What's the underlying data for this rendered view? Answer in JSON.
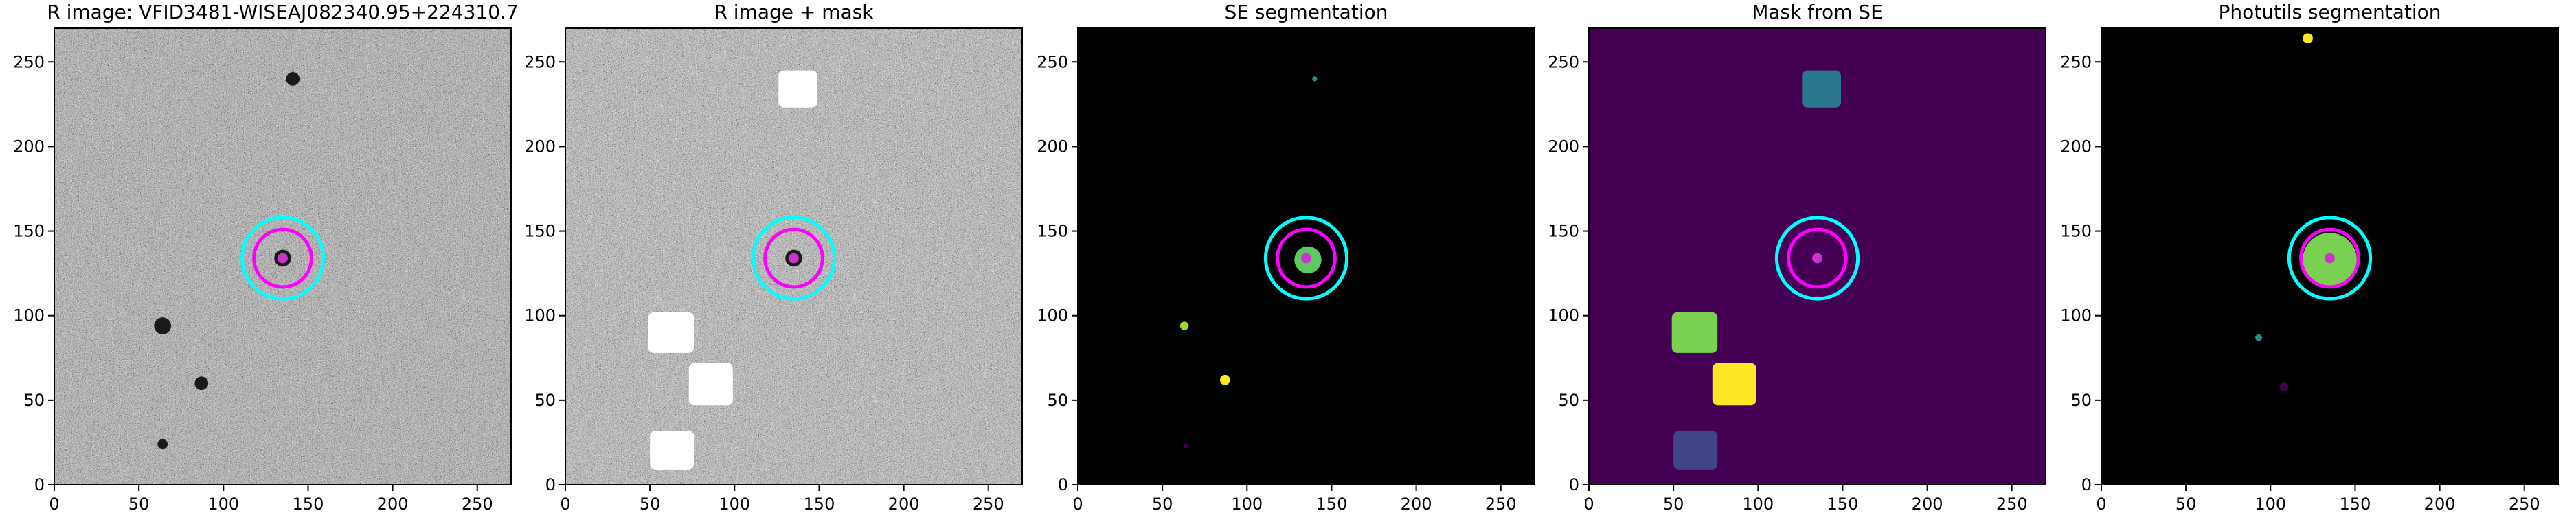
{
  "chart_data": [
    {
      "type": "image",
      "title": "R image: VFID3481-WISEAJ082340.95+224310.7",
      "cmap": "gray",
      "background": "#5c5c5c",
      "xlim": [
        0,
        270
      ],
      "ylim": [
        0,
        270
      ],
      "xticks": [
        0,
        50,
        100,
        150,
        200,
        250
      ],
      "yticks": [
        0,
        50,
        100,
        150,
        200,
        250
      ],
      "rects": [],
      "blobs": [
        {
          "x": 135,
          "y": 134,
          "r": 5,
          "color": "#1a1a1a"
        },
        {
          "x": 64,
          "y": 94,
          "r": 5,
          "color": "#1a1a1a"
        },
        {
          "x": 87,
          "y": 60,
          "r": 4,
          "color": "#1a1a1a"
        },
        {
          "x": 64,
          "y": 24,
          "r": 3,
          "color": "#1a1a1a"
        },
        {
          "x": 141,
          "y": 240,
          "r": 4,
          "color": "#1a1a1a"
        },
        {
          "x": 135,
          "y": 134,
          "r": 3,
          "color": "#cc33cc"
        }
      ],
      "circles": [
        {
          "x": 135,
          "y": 134,
          "r": 24,
          "color": "#00ffff"
        },
        {
          "x": 135,
          "y": 134,
          "r": 17,
          "color": "#ff00ff"
        }
      ]
    },
    {
      "type": "image",
      "title": "R image + mask",
      "cmap": "gray",
      "background": "#8a8a8a",
      "xlim": [
        0,
        270
      ],
      "ylim": [
        0,
        270
      ],
      "xticks": [
        0,
        50,
        100,
        150,
        200,
        250
      ],
      "yticks": [
        0,
        50,
        100,
        150,
        200,
        250
      ],
      "rects": [
        {
          "x0": 126,
          "y0": 223,
          "x1": 149,
          "y1": 245,
          "color": "#ffffff"
        },
        {
          "x0": 49,
          "y0": 78,
          "x1": 76,
          "y1": 102,
          "color": "#ffffff"
        },
        {
          "x0": 73,
          "y0": 47,
          "x1": 99,
          "y1": 72,
          "color": "#ffffff"
        },
        {
          "x0": 50,
          "y0": 9,
          "x1": 76,
          "y1": 32,
          "color": "#ffffff"
        }
      ],
      "blobs": [
        {
          "x": 135,
          "y": 134,
          "r": 5,
          "color": "#1a1a1a"
        },
        {
          "x": 135,
          "y": 134,
          "r": 3,
          "color": "#cc33cc"
        }
      ],
      "circles": [
        {
          "x": 135,
          "y": 134,
          "r": 24,
          "color": "#00ffff"
        },
        {
          "x": 135,
          "y": 134,
          "r": 17,
          "color": "#ff00ff"
        }
      ]
    },
    {
      "type": "image",
      "title": "SE segmentation",
      "background": "#000000",
      "xlim": [
        0,
        270
      ],
      "ylim": [
        0,
        270
      ],
      "xticks": [
        0,
        50,
        100,
        150,
        200,
        250
      ],
      "yticks": [
        0,
        50,
        100,
        150,
        200,
        250
      ],
      "rects": [],
      "blobs": [
        {
          "x": 140,
          "y": 240,
          "r": 1.5,
          "color": "#21918c"
        },
        {
          "x": 63,
          "y": 94,
          "r": 2.5,
          "color": "#a0da39"
        },
        {
          "x": 87,
          "y": 62,
          "r": 3,
          "color": "#fde725"
        },
        {
          "x": 64,
          "y": 23,
          "r": 1.5,
          "color": "#440154"
        },
        {
          "x": 136,
          "y": 133,
          "r": 8,
          "color": "#5ec962"
        },
        {
          "x": 135,
          "y": 134,
          "r": 3,
          "color": "#cc33cc"
        }
      ],
      "circles": [
        {
          "x": 135,
          "y": 134,
          "r": 24,
          "color": "#00ffff"
        },
        {
          "x": 135,
          "y": 134,
          "r": 17,
          "color": "#ff00ff"
        }
      ]
    },
    {
      "type": "image",
      "title": "Mask from SE",
      "background": "#440154",
      "xlim": [
        0,
        270
      ],
      "ylim": [
        0,
        270
      ],
      "xticks": [
        0,
        50,
        100,
        150,
        200,
        250
      ],
      "yticks": [
        0,
        50,
        100,
        150,
        200,
        250
      ],
      "rects": [
        {
          "x0": 126,
          "y0": 223,
          "x1": 149,
          "y1": 245,
          "color": "#2a788e"
        },
        {
          "x0": 49,
          "y0": 78,
          "x1": 76,
          "y1": 102,
          "color": "#7ad151"
        },
        {
          "x0": 73,
          "y0": 47,
          "x1": 99,
          "y1": 72,
          "color": "#fde725"
        },
        {
          "x0": 50,
          "y0": 9,
          "x1": 76,
          "y1": 32,
          "color": "#414487"
        }
      ],
      "blobs": [
        {
          "x": 135,
          "y": 134,
          "r": 3,
          "color": "#cc33cc"
        }
      ],
      "circles": [
        {
          "x": 135,
          "y": 134,
          "r": 24,
          "color": "#00ffff"
        },
        {
          "x": 135,
          "y": 134,
          "r": 17,
          "color": "#ff00ff"
        }
      ]
    },
    {
      "type": "image",
      "title": "Photutils segmentation",
      "background": "#000000",
      "xlim": [
        0,
        270
      ],
      "ylim": [
        0,
        270
      ],
      "xticks": [
        0,
        50,
        100,
        150,
        200,
        250
      ],
      "yticks": [
        0,
        50,
        100,
        150,
        200,
        250
      ],
      "rects": [],
      "blobs": [
        {
          "x": 122,
          "y": 264,
          "r": 3,
          "color": "#fde725"
        },
        {
          "x": 93,
          "y": 87,
          "r": 2,
          "color": "#21918c"
        },
        {
          "x": 108,
          "y": 58,
          "r": 2.5,
          "color": "#440154"
        },
        {
          "x": 135,
          "y": 133,
          "r": 16,
          "color": "#7ad151"
        },
        {
          "x": 135,
          "y": 134,
          "r": 3,
          "color": "#cc33cc"
        }
      ],
      "circles": [
        {
          "x": 135,
          "y": 134,
          "r": 24,
          "color": "#00ffff"
        },
        {
          "x": 135,
          "y": 134,
          "r": 17,
          "color": "#ff00ff"
        }
      ]
    }
  ]
}
